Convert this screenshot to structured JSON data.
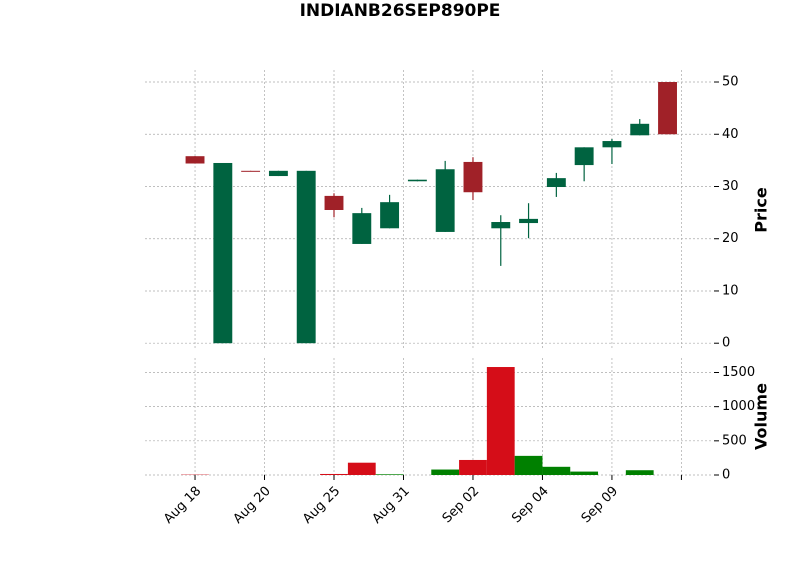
{
  "chart_data": [
    {
      "type": "candlestick",
      "title": "INDIANB26SEP890PE",
      "ylabel": "Price",
      "x": [
        0,
        1,
        2,
        3,
        4,
        5,
        6,
        7,
        8,
        9,
        10,
        11,
        12,
        13,
        14,
        15,
        16,
        17
      ],
      "open": [
        35.8,
        0,
        33,
        32,
        0,
        28.2,
        19,
        22,
        31,
        21.3,
        34.7,
        22,
        23,
        29.9,
        34.1,
        37.5,
        39.8,
        50
      ],
      "high": [
        35.8,
        34.5,
        33,
        33,
        33,
        28.7,
        25.9,
        28.4,
        31.3,
        34.9,
        35.6,
        24.5,
        26.8,
        32.6,
        37.5,
        39.1,
        42.9,
        50
      ],
      "low": [
        34.4,
        0,
        32.9,
        32,
        0,
        24.1,
        19,
        22,
        31,
        21.3,
        27.4,
        14.8,
        20.1,
        28,
        31,
        34.3,
        39.8,
        40
      ],
      "close": [
        34.4,
        34.5,
        32.9,
        33,
        33,
        25.5,
        24.9,
        27,
        31.3,
        33.3,
        28.9,
        23.2,
        23.8,
        31.6,
        37.5,
        38.7,
        42,
        40
      ],
      "up_color": "#006340",
      "down_color": "#a02128",
      "xlim": [
        -1.8,
        18.6
      ],
      "ylim": [
        -1.3,
        52.3
      ],
      "yticks": [
        0,
        10,
        20,
        30,
        40,
        50
      ],
      "grid": true
    },
    {
      "type": "bar",
      "ylabel": "Volume",
      "x": [
        0,
        1,
        2,
        3,
        4,
        5,
        6,
        7,
        8,
        9,
        10,
        11,
        12,
        13,
        14,
        15,
        16,
        17
      ],
      "values": [
        5,
        0,
        0,
        0,
        0,
        15,
        180,
        10,
        0,
        80,
        220,
        1580,
        280,
        120,
        50,
        0,
        70,
        0
      ],
      "colors": [
        "#d50d18",
        "#008000",
        "#008000",
        "#008000",
        "#008000",
        "#d50d18",
        "#d50d18",
        "#008000",
        "#008000",
        "#008000",
        "#d50d18",
        "#d50d18",
        "#008000",
        "#008000",
        "#008000",
        "#008000",
        "#008000",
        "#008000"
      ],
      "xlim": [
        -1.8,
        18.6
      ],
      "ylim": [
        0,
        1712
      ],
      "yticks": [
        0,
        500,
        1000,
        1500
      ],
      "xticks": [
        {
          "value": 0,
          "label": "Aug 18"
        },
        {
          "value": 2.5,
          "label": "Aug 20"
        },
        {
          "value": 5,
          "label": "Aug 25"
        },
        {
          "value": 7.5,
          "label": "Aug 31"
        },
        {
          "value": 10,
          "label": "Sep 02"
        },
        {
          "value": 12.5,
          "label": "Sep 04"
        },
        {
          "value": 15,
          "label": "Sep 09"
        },
        {
          "value": 17.5,
          "label": null
        }
      ],
      "grid": true
    }
  ]
}
